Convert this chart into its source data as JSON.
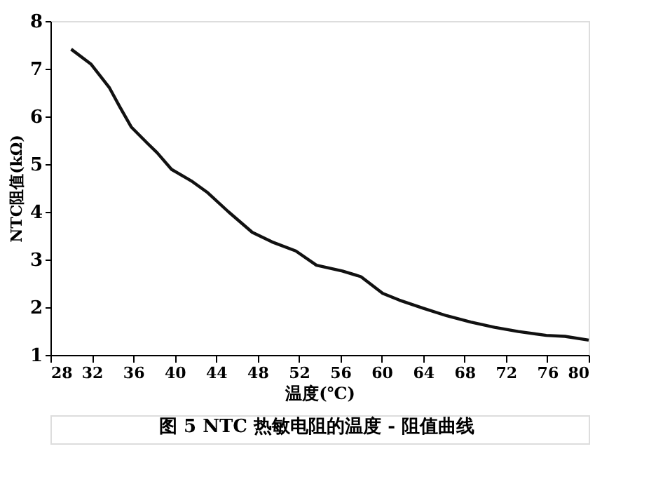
{
  "chart_data": {
    "type": "line",
    "xlabel": "温度(℃)",
    "ylabel": "NTC阻值(kΩ)",
    "annotations": [
      "图 5   NTC 热敏电阻的温度 - 阻值曲线"
    ],
    "x": [
      30,
      31.9,
      33.7,
      34.7,
      35.8,
      37.4,
      38.3,
      39.7,
      41.6,
      43.2,
      45.2,
      47.5,
      49.4,
      51.7,
      53.7,
      56.2,
      58.0,
      60.1,
      61.7,
      64.0,
      66.3,
      68.6,
      70.9,
      73.2,
      75.9,
      77.7,
      80
    ],
    "series": [
      {
        "color": "#111111",
        "values": [
          7.41,
          7.1,
          6.6,
          6.2,
          5.78,
          5.43,
          5.24,
          4.89,
          4.65,
          4.4,
          4.0,
          3.57,
          3.37,
          3.18,
          2.88,
          2.76,
          2.64,
          2.29,
          2.15,
          1.98,
          1.82,
          1.69,
          1.58,
          1.49,
          1.41,
          1.39,
          1.31
        ]
      }
    ],
    "xlim": [
      28,
      80
    ],
    "xticks": [
      28,
      32,
      36,
      40,
      44,
      48,
      52,
      56,
      60,
      64,
      68,
      72,
      76,
      80
    ],
    "ylim": [
      1,
      8
    ],
    "yticks": [
      1,
      2,
      3,
      4,
      5,
      6,
      7,
      8
    ],
    "grid": false,
    "marker": "none",
    "line_style": "solid"
  }
}
